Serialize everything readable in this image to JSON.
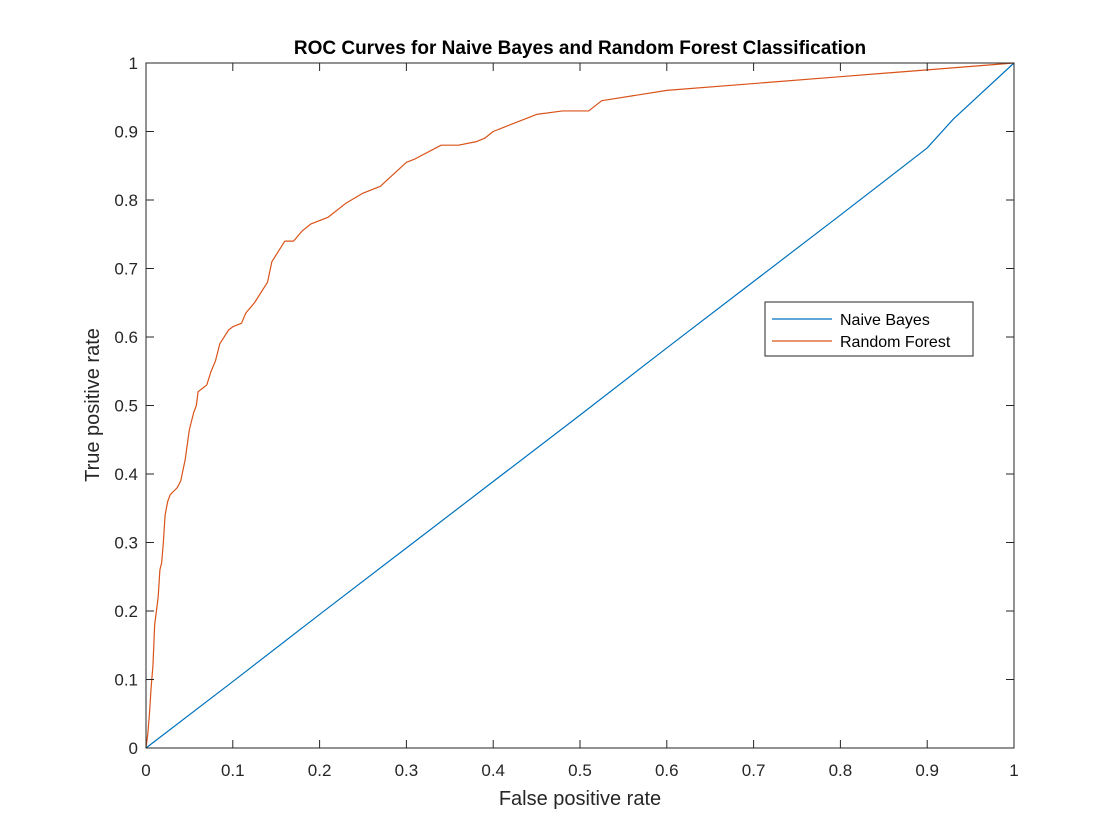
{
  "chart_data": {
    "type": "line",
    "title": "ROC Curves for Naive Bayes and Random Forest Classification",
    "xlabel": "False positive rate",
    "ylabel": "True positive rate",
    "xlim": [
      0,
      1
    ],
    "ylim": [
      0,
      1
    ],
    "xticks": [
      0,
      0.1,
      0.2,
      0.3,
      0.4,
      0.5,
      0.6,
      0.7,
      0.8,
      0.9,
      1
    ],
    "yticks": [
      0,
      0.1,
      0.2,
      0.3,
      0.4,
      0.5,
      0.6,
      0.7,
      0.8,
      0.9,
      1
    ],
    "xtick_labels": [
      "0",
      "0.1",
      "0.2",
      "0.3",
      "0.4",
      "0.5",
      "0.6",
      "0.7",
      "0.8",
      "0.9",
      "1"
    ],
    "ytick_labels": [
      "0",
      "0.1",
      "0.2",
      "0.3",
      "0.4",
      "0.5",
      "0.6",
      "0.7",
      "0.8",
      "0.9",
      "1"
    ],
    "grid": false,
    "legend_position": "right",
    "series": [
      {
        "name": "Naive Bayes",
        "color": "#0072BD",
        "x": [
          0,
          0.1,
          0.2,
          0.3,
          0.4,
          0.5,
          0.6,
          0.7,
          0.8,
          0.9,
          0.93,
          1
        ],
        "y": [
          0,
          0.097,
          0.195,
          0.292,
          0.389,
          0.486,
          0.584,
          0.681,
          0.778,
          0.876,
          0.918,
          1
        ]
      },
      {
        "name": "Random Forest",
        "color": "#D95319",
        "x": [
          0,
          0.002,
          0.004,
          0.006,
          0.008,
          0.01,
          0.012,
          0.014,
          0.016,
          0.018,
          0.02,
          0.022,
          0.025,
          0.028,
          0.032,
          0.036,
          0.04,
          0.045,
          0.05,
          0.055,
          0.058,
          0.06,
          0.065,
          0.07,
          0.075,
          0.08,
          0.085,
          0.09,
          0.095,
          0.1,
          0.11,
          0.115,
          0.125,
          0.14,
          0.145,
          0.15,
          0.16,
          0.17,
          0.18,
          0.19,
          0.2,
          0.21,
          0.23,
          0.25,
          0.27,
          0.3,
          0.31,
          0.34,
          0.36,
          0.38,
          0.39,
          0.4,
          0.45,
          0.48,
          0.51,
          0.525,
          0.6,
          0.7,
          0.8,
          0.9,
          1
        ],
        "y": [
          0,
          0.02,
          0.05,
          0.09,
          0.12,
          0.18,
          0.2,
          0.22,
          0.26,
          0.27,
          0.3,
          0.34,
          0.36,
          0.37,
          0.375,
          0.38,
          0.39,
          0.42,
          0.465,
          0.49,
          0.5,
          0.52,
          0.525,
          0.53,
          0.55,
          0.565,
          0.59,
          0.6,
          0.61,
          0.615,
          0.62,
          0.635,
          0.65,
          0.68,
          0.71,
          0.72,
          0.74,
          0.74,
          0.755,
          0.765,
          0.77,
          0.775,
          0.795,
          0.81,
          0.82,
          0.855,
          0.86,
          0.88,
          0.88,
          0.885,
          0.89,
          0.9,
          0.925,
          0.93,
          0.93,
          0.945,
          0.96,
          0.97,
          0.98,
          0.99,
          1
        ]
      }
    ]
  }
}
